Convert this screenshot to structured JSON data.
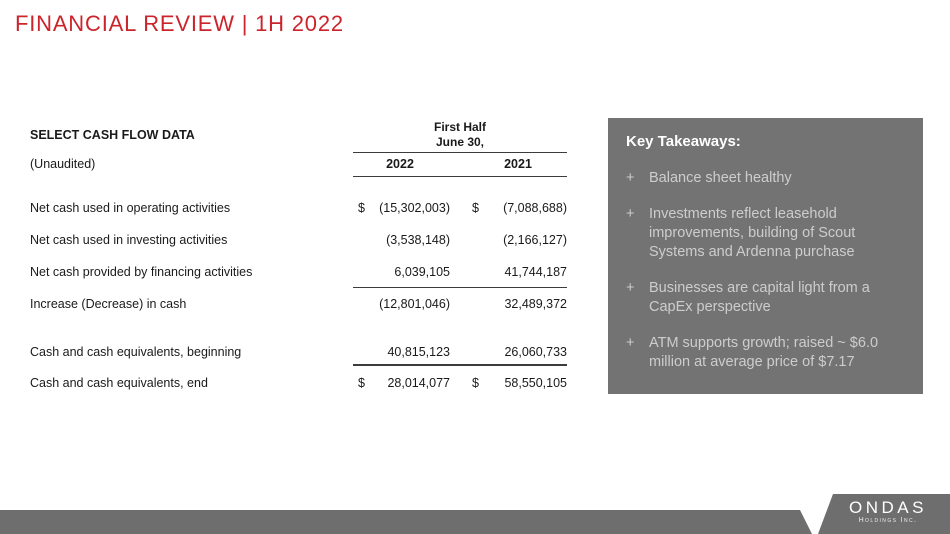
{
  "slide": {
    "title": "FINANCIAL REVIEW | 1H 2022",
    "accent_color": "#cc242c",
    "panel_color": "#737373",
    "bar_color": "#6e6e6e"
  },
  "table": {
    "title": "SELECT CASH FLOW DATA",
    "subtitle": "(Unaudited)",
    "period_line1": "First Half",
    "period_line2": "June 30,",
    "col_2022": "2022",
    "col_2021": "2021",
    "rows": [
      {
        "label": "Net cash used in operating activities",
        "d1": "$",
        "v2022": "(15,302,003)",
        "d2": "$",
        "v2021": "(7,088,688)"
      },
      {
        "label": "Net cash used in investing activities",
        "v2022": "(3,538,148)",
        "v2021": "(2,166,127)"
      },
      {
        "label": "Net cash provided by financing activities",
        "v2022": "6,039,105",
        "v2021": "41,744,187"
      },
      {
        "label": "Increase (Decrease) in cash",
        "v2022": "(12,801,046)",
        "v2021": "32,489,372"
      },
      {
        "label": "Cash and cash equivalents, beginning",
        "v2022": "40,815,123",
        "v2021": "26,060,733"
      },
      {
        "label": "Cash and cash equivalents, end",
        "d1": "$",
        "v2022": "28,014,077",
        "d2": "$",
        "v2021": "58,550,105"
      }
    ]
  },
  "takeaways": {
    "heading": "Key Takeaways:",
    "marker": "+",
    "items": [
      "Balance sheet healthy",
      "Investments reflect leasehold improvements, building of Scout Systems and Ardenna purchase",
      "Businesses are capital light from a CapEx perspective",
      "ATM supports growth; raised ~ $6.0 million at average price of $7.17"
    ]
  },
  "footer": {
    "logo_name": "ONDAS",
    "logo_sub": "Holdings Inc."
  }
}
